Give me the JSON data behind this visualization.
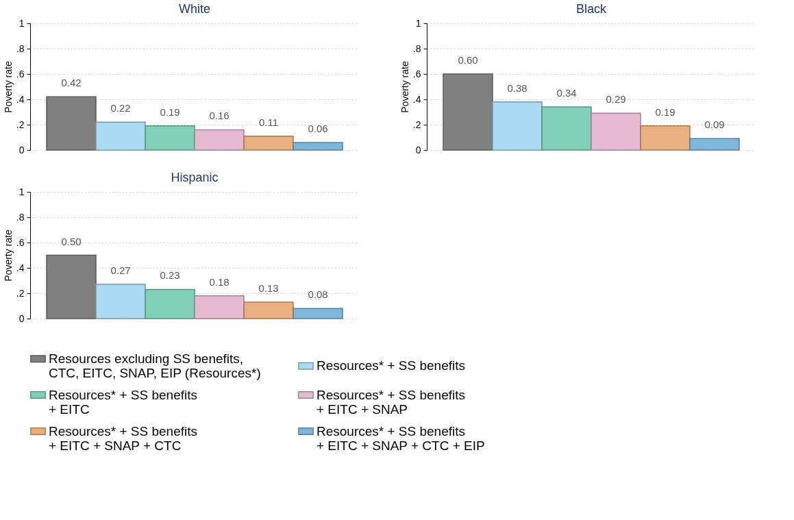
{
  "chart_data": [
    {
      "type": "bar",
      "title": "White",
      "ylabel": "Poverty rate",
      "categories": [
        null
      ],
      "ylim": [
        0,
        1
      ],
      "yticks": [
        0,
        {
          "value": 0.2,
          "label": ".2"
        },
        {
          "value": 0.4,
          "label": ".4"
        },
        {
          "value": 0.6,
          "label": ".6"
        },
        {
          "value": 0.8,
          "label": ".8"
        },
        1
      ],
      "grid": "y",
      "legend": "bottom",
      "series": [
        {
          "name": "Resources excluding SS benefits,\nCTC, EITC, SNAP, EIP (Resources*)",
          "color": "#808080",
          "values": [
            0.42
          ],
          "value_labels": [
            "0.42"
          ]
        },
        {
          "name": "Resources* + SS benefits",
          "color": "#abdaf3",
          "values": [
            0.22
          ],
          "value_labels": [
            "0.22"
          ]
        },
        {
          "name": "Resources* + SS benefits\n+ EITC",
          "color": "#82d0b9",
          "values": [
            0.19
          ],
          "value_labels": [
            "0.19"
          ]
        },
        {
          "name": "Resources* + SS benefits\n+ EITC + SNAP",
          "color": "#e6bbd2",
          "values": [
            0.16
          ],
          "value_labels": [
            "0.16"
          ]
        },
        {
          "name": "Resources* + SS benefits\n+ EITC + SNAP + CTC",
          "color": "#eaaf7f",
          "values": [
            0.11
          ],
          "value_labels": [
            "0.11"
          ]
        },
        {
          "name": "Resources* + SS benefits\n+ EITC + SNAP + CTC + EIP",
          "color": "#7fb6d9",
          "values": [
            0.06
          ],
          "value_labels": [
            "0.06"
          ]
        }
      ]
    },
    {
      "type": "bar",
      "title": "Black",
      "ylabel": "Poverty rate",
      "categories": [
        null
      ],
      "ylim": [
        0,
        1
      ],
      "yticks": [
        0,
        {
          "value": 0.2,
          "label": ".2"
        },
        {
          "value": 0.4,
          "label": ".4"
        },
        {
          "value": 0.6,
          "label": ".6"
        },
        {
          "value": 0.8,
          "label": ".8"
        },
        1
      ],
      "grid": "y",
      "legend": "bottom",
      "series": [
        {
          "name": "Resources excluding SS benefits,\nCTC, EITC, SNAP, EIP (Resources*)",
          "color": "#808080",
          "values": [
            0.6
          ],
          "value_labels": [
            "0.60"
          ]
        },
        {
          "name": "Resources* + SS benefits",
          "color": "#abdaf3",
          "values": [
            0.38
          ],
          "value_labels": [
            "0.38"
          ]
        },
        {
          "name": "Resources* + SS benefits\n+ EITC",
          "color": "#82d0b9",
          "values": [
            0.34
          ],
          "value_labels": [
            "0.34"
          ]
        },
        {
          "name": "Resources* + SS benefits\n+ EITC + SNAP",
          "color": "#e6bbd2",
          "values": [
            0.29
          ],
          "value_labels": [
            "0.29"
          ]
        },
        {
          "name": "Resources* + SS benefits\n+ EITC + SNAP + CTC",
          "color": "#eaaf7f",
          "values": [
            0.19
          ],
          "value_labels": [
            "0.19"
          ]
        },
        {
          "name": "Resources* + SS benefits\n+ EITC + SNAP + CTC + EIP",
          "color": "#7fb6d9",
          "values": [
            0.09
          ],
          "value_labels": [
            "0.09"
          ]
        }
      ]
    },
    {
      "type": "bar",
      "title": "Hispanic",
      "ylabel": "Poverty rate",
      "categories": [
        null
      ],
      "ylim": [
        0,
        1
      ],
      "yticks": [
        0,
        {
          "value": 0.2,
          "label": ".2"
        },
        {
          "value": 0.4,
          "label": ".4"
        },
        {
          "value": 0.6,
          "label": ".6"
        },
        {
          "value": 0.8,
          "label": ".8"
        },
        1
      ],
      "grid": "y",
      "legend": "bottom",
      "series": [
        {
          "name": "Resources excluding SS benefits,\nCTC, EITC, SNAP, EIP (Resources*)",
          "color": "#808080",
          "values": [
            0.5
          ],
          "value_labels": [
            "0.50"
          ]
        },
        {
          "name": "Resources* + SS benefits",
          "color": "#abdaf3",
          "values": [
            0.27
          ],
          "value_labels": [
            "0.27"
          ]
        },
        {
          "name": "Resources* + SS benefits\n+ EITC",
          "color": "#82d0b9",
          "values": [
            0.23
          ],
          "value_labels": [
            "0.23"
          ]
        },
        {
          "name": "Resources* + SS benefits\n+ EITC + SNAP",
          "color": "#e6bbd2",
          "values": [
            0.18
          ],
          "value_labels": [
            "0.18"
          ]
        },
        {
          "name": "Resources* + SS benefits\n+ EITC + SNAP + CTC",
          "color": "#eaaf7f",
          "values": [
            0.13
          ],
          "value_labels": [
            "0.13"
          ]
        },
        {
          "name": "Resources* + SS benefits\n+ EITC + SNAP + CTC + EIP",
          "color": "#7fb6d9",
          "values": [
            0.08
          ],
          "value_labels": [
            "0.08"
          ]
        }
      ]
    }
  ]
}
